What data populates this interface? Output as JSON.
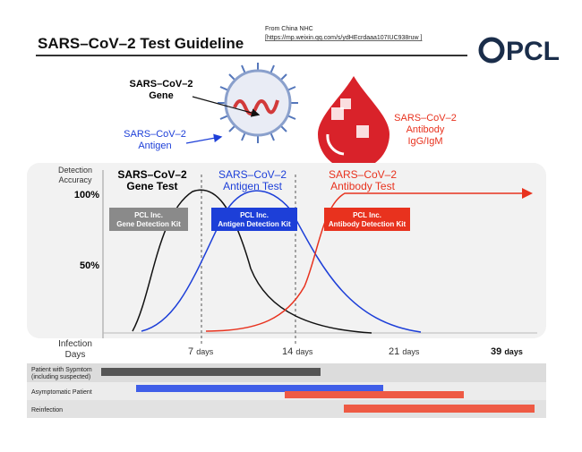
{
  "header": {
    "title": "SARS–CoV–2 Test Guideline",
    "source": "From China NHC",
    "source_url": "[https://mp.weixin.qq.com/s/ydHEcrdaaa107IUC938ruw ]",
    "logo": "PCL"
  },
  "illustration": {
    "gene_label": [
      "SARS–CoV–2",
      "Gene"
    ],
    "antigen_label": [
      "SARS–CoV–2",
      "Antigen"
    ],
    "antibody_label": [
      "SARS–CoV–2",
      "Antibody",
      "IgG/IgM"
    ]
  },
  "chart": {
    "y_title": [
      "Detection",
      "Accuracy"
    ],
    "y_labels": [
      "100%",
      "50%"
    ],
    "x_title": [
      "Infection",
      "Days"
    ],
    "x_labels": [
      {
        "num": "7",
        "unit": "days"
      },
      {
        "num": "14",
        "unit": "days"
      },
      {
        "num": "21",
        "unit": "days"
      },
      {
        "num": "39",
        "unit": "days"
      }
    ],
    "tests": [
      {
        "title": [
          "SARS–CoV–2",
          "Gene Test"
        ],
        "kit": [
          "PCL Inc.",
          "Gene Detection Kit"
        ]
      },
      {
        "title": [
          "SARS–CoV–2",
          "Antigen Test"
        ],
        "kit": [
          "PCL Inc.",
          "Antigen Detection Kit"
        ]
      },
      {
        "title": [
          "SARS–CoV–2",
          "Antibody Test"
        ],
        "kit": [
          "PCL Inc.",
          "Antibody Detection Kit"
        ]
      }
    ]
  },
  "timeline": {
    "rows": [
      [
        "Patient with Sypmtom",
        "(including suspected)"
      ],
      [
        "Asymptomatic Patient"
      ],
      [
        "Reinfection"
      ]
    ]
  }
}
